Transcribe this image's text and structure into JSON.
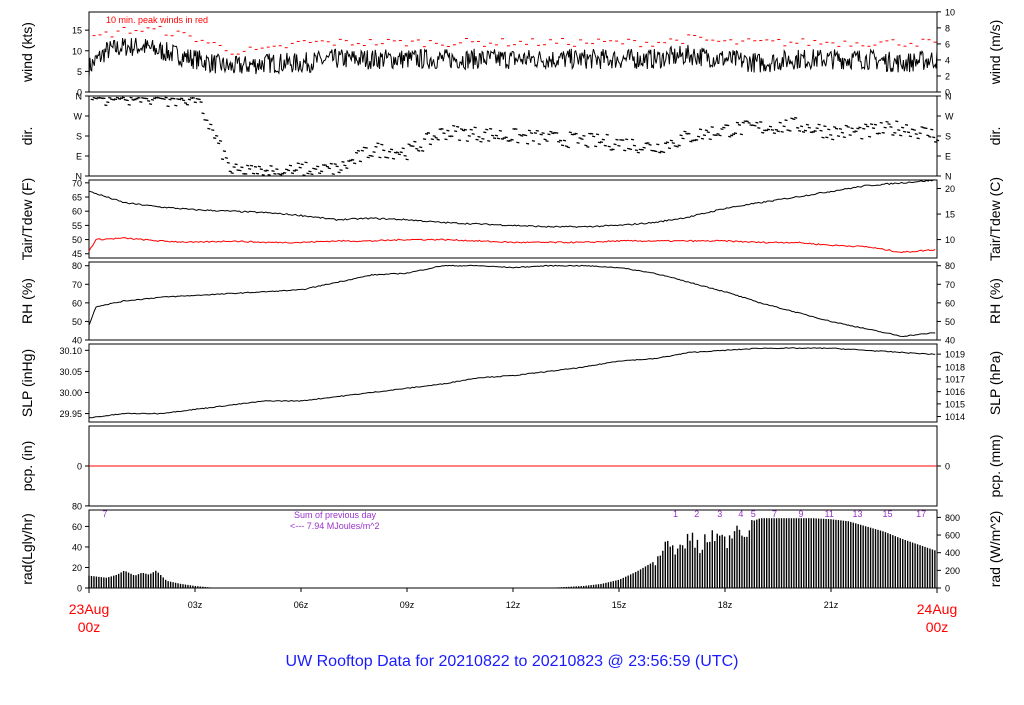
{
  "title": "UW Rooftop Data for 20210822  to  20210823 @ 23:56:59  (UTC)",
  "colors": {
    "frame": "#000000",
    "series": "#000000",
    "peak": "#ff0000",
    "dewpoint": "#ff0000",
    "precip": "#ff0000",
    "title": "#1a1aff",
    "annotation": "#9933cc",
    "date_label": "#ff0000"
  },
  "x_axis": {
    "range_hours": [
      0,
      24
    ],
    "ticks": [
      {
        "hour": 3,
        "label": "03z"
      },
      {
        "hour": 6,
        "label": "06z"
      },
      {
        "hour": 9,
        "label": "09z"
      },
      {
        "hour": 12,
        "label": "12z"
      },
      {
        "hour": 15,
        "label": "15z"
      },
      {
        "hour": 18,
        "label": "18z"
      },
      {
        "hour": 21,
        "label": "21z"
      }
    ],
    "start": {
      "line1": "23Aug",
      "line2": "00z"
    },
    "end": {
      "line1": "24Aug",
      "line2": "00z"
    }
  },
  "annotations": {
    "wind_note": "10 min. peak winds in red",
    "rad_sum_line1": "Sum of previous day",
    "rad_sum_line2": "<--- 7.94 MJoules/m^2"
  },
  "chart_data": [
    {
      "type": "line",
      "id": "wind",
      "ylabel_left": "wind (kts)",
      "ylabel_right": "wind (m/s)",
      "ylim": [
        0,
        19.4
      ],
      "left_ticks": [
        "0",
        "5",
        "10",
        "15"
      ],
      "left_tick_values": [
        0,
        5,
        10,
        15
      ],
      "right_ticks": [
        "0",
        "2",
        "4",
        "6",
        "8",
        "10"
      ],
      "right_tick_values_kts": [
        0,
        3.89,
        7.78,
        11.66,
        15.55,
        19.44
      ],
      "series": [
        {
          "name": "",
          "x": [
            0,
            0.5,
            1,
            1.5,
            2,
            2.5,
            3,
            3.5,
            4,
            5,
            6,
            7,
            8,
            9,
            10,
            11,
            12,
            13,
            14,
            15,
            16,
            17,
            18,
            19,
            20,
            21,
            22,
            23,
            24
          ],
          "y": [
            6,
            10,
            11,
            11,
            10,
            9,
            8,
            7,
            6,
            7,
            7,
            8,
            8,
            8,
            8,
            8,
            8,
            8,
            8,
            8,
            8,
            9,
            8,
            7,
            8,
            8,
            8,
            7,
            8
          ]
        },
        {
          "name": "",
          "x": [
            0,
            1,
            2,
            3,
            4,
            5,
            6,
            7,
            8,
            9,
            10,
            11,
            12,
            13,
            14,
            15,
            16,
            17,
            18,
            19,
            20,
            21,
            22,
            23,
            24
          ],
          "y": [
            13,
            15,
            15,
            13,
            10,
            10,
            12,
            12,
            12,
            12,
            12,
            12,
            12,
            12,
            12,
            12,
            12,
            13,
            12,
            12,
            12,
            12,
            12,
            12,
            12
          ]
        }
      ]
    },
    {
      "type": "scatter",
      "id": "dir",
      "ylabel_left": "dir.",
      "ylabel_right": "dir.",
      "ylim": [
        0,
        360
      ],
      "left_ticks": [
        "N",
        "E",
        "S",
        "W",
        "N"
      ],
      "tick_values": [
        0,
        90,
        180,
        270,
        360
      ],
      "right_ticks": [
        "N",
        "E",
        "S",
        "W",
        "N"
      ],
      "series": [
        {
          "name": "",
          "x": [
            0,
            1,
            2,
            3,
            4,
            5,
            6,
            7,
            8,
            9,
            10,
            11,
            12,
            13,
            14,
            15,
            16,
            17,
            18,
            19,
            20,
            21,
            22,
            23,
            24
          ],
          "y": [
            350,
            355,
            350,
            350,
            20,
            20,
            30,
            30,
            120,
            110,
            200,
            190,
            180,
            170,
            160,
            150,
            130,
            180,
            210,
            220,
            230,
            200,
            200,
            220,
            180
          ]
        }
      ]
    },
    {
      "type": "line",
      "id": "temp",
      "ylabel_left": "Tair/Tdew (F)",
      "ylabel_right": "Tair/Tdew (C)",
      "ylim": [
        43.5,
        71
      ],
      "left_ticks": [
        "45",
        "50",
        "55",
        "60",
        "65",
        "70"
      ],
      "left_tick_values": [
        45,
        50,
        55,
        60,
        65,
        70
      ],
      "right_ticks": [
        "10",
        "15",
        "20"
      ],
      "right_tick_values_f": [
        50,
        59,
        68
      ],
      "series": [
        {
          "name": "",
          "x": [
            0,
            1,
            2,
            3,
            4,
            5,
            6,
            7,
            8,
            9,
            10,
            11,
            12,
            13,
            14,
            15,
            16,
            17,
            18,
            19,
            20,
            21,
            22,
            23,
            24
          ],
          "y": [
            67,
            63,
            61.5,
            60.5,
            60,
            59.5,
            58.5,
            57,
            57.5,
            57,
            56,
            55.5,
            55,
            54.5,
            54.5,
            55,
            56,
            58,
            61,
            63,
            65,
            67,
            69,
            70,
            71
          ]
        },
        {
          "name": "",
          "x": [
            0,
            0.2,
            1,
            2,
            3,
            4,
            5,
            6,
            7,
            8,
            9,
            10,
            11,
            12,
            13,
            14,
            15,
            16,
            17,
            18,
            19,
            20,
            21,
            22,
            23,
            24
          ],
          "y": [
            46,
            50,
            50.5,
            49.5,
            49,
            49.5,
            49,
            49,
            49.5,
            49.5,
            50,
            50,
            49.5,
            49,
            49,
            49,
            49.5,
            49.5,
            49.5,
            49.5,
            49,
            49,
            48,
            47.5,
            45.5,
            46.5
          ]
        }
      ]
    },
    {
      "type": "line",
      "id": "rh",
      "ylabel_left": "RH (%)",
      "ylabel_right": "RH (%)",
      "ylim": [
        40,
        82
      ],
      "left_ticks": [
        "40",
        "50",
        "60",
        "70",
        "80"
      ],
      "tick_values": [
        40,
        50,
        60,
        70,
        80
      ],
      "right_ticks": [
        "40",
        "50",
        "60",
        "70",
        "80"
      ],
      "series": [
        {
          "name": "",
          "x": [
            0,
            0.2,
            1,
            2,
            3,
            4,
            5,
            6,
            7,
            8,
            9,
            10,
            11,
            12,
            13,
            14,
            15,
            16,
            17,
            18,
            19,
            20,
            21,
            22,
            23,
            24
          ],
          "y": [
            48,
            58,
            61,
            63,
            64,
            65,
            66,
            67,
            71,
            75,
            76,
            80,
            80,
            79,
            80,
            80,
            79,
            76,
            71,
            66,
            60,
            55,
            50,
            46,
            42,
            44
          ]
        }
      ]
    },
    {
      "type": "line",
      "id": "slp",
      "ylabel_left": "SLP (inHg)",
      "ylabel_right": "SLP (hPa)",
      "ylim": [
        29.93,
        30.115
      ],
      "left_ticks": [
        "29.95",
        "30.00",
        "30.05",
        "30.10"
      ],
      "left_tick_values": [
        29.95,
        30.0,
        30.05,
        30.1
      ],
      "right_ticks": [
        "1014",
        "1015",
        "1016",
        "1017",
        "1018",
        "1019"
      ],
      "right_tick_values_inhg": [
        29.943,
        29.973,
        30.002,
        30.032,
        30.061,
        30.091
      ],
      "series": [
        {
          "name": "",
          "x": [
            0,
            1,
            2,
            3,
            4,
            5,
            6,
            7,
            8,
            9,
            10,
            11,
            12,
            13,
            14,
            15,
            16,
            17,
            18,
            19,
            20,
            21,
            22,
            23,
            24
          ],
          "y": [
            29.94,
            29.95,
            29.95,
            29.96,
            29.97,
            29.98,
            29.98,
            29.99,
            30.0,
            30.01,
            30.02,
            30.035,
            30.04,
            30.05,
            30.06,
            30.075,
            30.08,
            30.095,
            30.1,
            30.105,
            30.105,
            30.105,
            30.1,
            30.095,
            30.09
          ]
        }
      ]
    },
    {
      "type": "line",
      "id": "pcp",
      "ylabel_left": "pcp. (in)",
      "ylabel_right": "pcp. (mm)",
      "ylim": [
        -1,
        1
      ],
      "left_ticks": [
        "0"
      ],
      "right_ticks": [
        "0"
      ],
      "tick_values": [
        0
      ],
      "series": [
        {
          "name": "",
          "x": [
            0,
            24
          ],
          "y": [
            0,
            0
          ]
        }
      ]
    },
    {
      "type": "area",
      "id": "rad",
      "ylabel_left": "rad(Lgly/hr)",
      "ylabel_right": "rad (W/m^2)",
      "ylim": [
        0,
        76
      ],
      "left_ticks": [
        "0",
        "20",
        "40",
        "60",
        "80"
      ],
      "left_tick_values": [
        0,
        20,
        40,
        60,
        80
      ],
      "right_ticks": [
        "0",
        "200",
        "400",
        "600",
        "800"
      ],
      "right_tick_values_lgly": [
        0,
        17.2,
        34.4,
        51.6,
        68.8
      ],
      "series": [
        {
          "name": "",
          "x": [
            0,
            0.5,
            0.8,
            1.0,
            1.3,
            1.5,
            1.7,
            1.9,
            2.2,
            2.6,
            3.0,
            3.6,
            12.9,
            13.5,
            14.0,
            14.5,
            15.0,
            15.5,
            16.0,
            16.3,
            16.7,
            17.0,
            17.3,
            17.6,
            18.0,
            18.3,
            18.7,
            19.0,
            19.5,
            20.0,
            20.5,
            21.0,
            21.5,
            22.0,
            22.5,
            23.0,
            23.5,
            24.0
          ],
          "y": [
            12,
            10,
            13,
            17,
            12,
            15,
            13,
            17,
            7,
            4,
            2,
            0,
            0,
            1,
            2,
            4,
            8,
            16,
            26,
            45,
            38,
            55,
            40,
            58,
            48,
            65,
            64,
            68,
            68,
            68,
            68,
            67,
            65,
            60,
            55,
            48,
            42,
            36
          ]
        }
      ],
      "markers": [
        {
          "hour": 0.45,
          "label": "7"
        },
        {
          "hour": 16.6,
          "label": "1"
        },
        {
          "hour": 17.2,
          "label": "2"
        },
        {
          "hour": 17.85,
          "label": "3"
        },
        {
          "hour": 18.45,
          "label": "4"
        },
        {
          "hour": 18.8,
          "label": "5"
        },
        {
          "hour": 19.4,
          "label": "7"
        },
        {
          "hour": 20.15,
          "label": "9"
        },
        {
          "hour": 20.95,
          "label": "11"
        },
        {
          "hour": 21.75,
          "label": "13"
        },
        {
          "hour": 22.6,
          "label": "15"
        },
        {
          "hour": 23.55,
          "label": "17"
        }
      ]
    }
  ]
}
